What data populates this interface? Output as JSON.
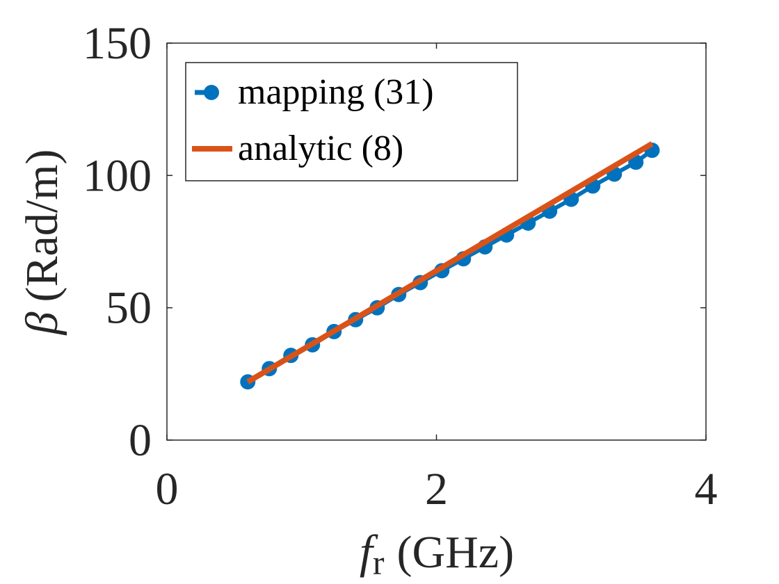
{
  "chart_data": {
    "type": "line",
    "xlabel_main": "f",
    "xlabel_sub": "r",
    "xlabel_unit": "(GHz)",
    "ylabel_symbol": "β",
    "ylabel_unit": "(Rad/m)",
    "xlim": [
      0,
      4
    ],
    "ylim": [
      0,
      150
    ],
    "xticks": [
      0,
      2,
      4
    ],
    "yticks": [
      0,
      50,
      100,
      150
    ],
    "grid": false,
    "legend_position": "top-left",
    "series": [
      {
        "name": "mapping (31)",
        "style": "line-markers",
        "color": "#0072BD",
        "x": [
          0.6,
          0.76,
          0.92,
          1.08,
          1.24,
          1.4,
          1.56,
          1.72,
          1.88,
          2.04,
          2.2,
          2.36,
          2.52,
          2.68,
          2.84,
          3.0,
          3.16,
          3.32,
          3.48,
          3.6
        ],
        "y": [
          22,
          27,
          32,
          36,
          41,
          45.5,
          50,
          55,
          59.5,
          64,
          68.5,
          73,
          77.5,
          82,
          86.5,
          91,
          96,
          100.5,
          105,
          109.5
        ]
      },
      {
        "name": "analytic (8)",
        "style": "line",
        "color": "#D95319",
        "x": [
          0.6,
          3.6
        ],
        "y": [
          22,
          112
        ]
      }
    ]
  }
}
